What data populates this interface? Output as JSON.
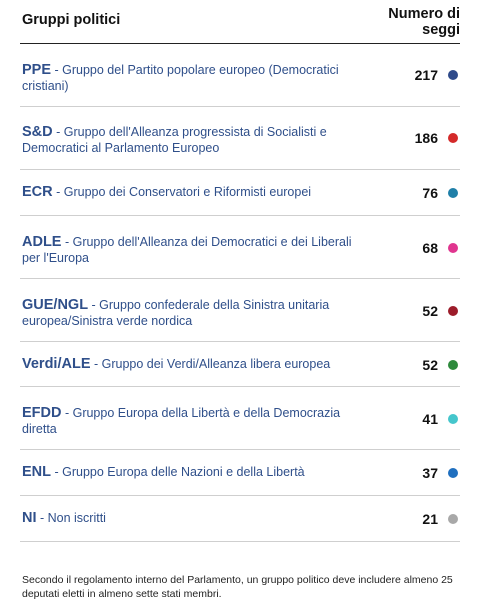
{
  "header": {
    "col_groups": "Gruppi politici",
    "col_seats": "Numero di seggi"
  },
  "groups": [
    {
      "abbr": "PPE",
      "name": "Gruppo del Partito popolare europeo (Democratici cristiani)",
      "seats": "217",
      "color": "#2e4a8a"
    },
    {
      "abbr": "S&D",
      "name": "Gruppo dell'Alleanza progressista di Socialisti e Democratici al Parlamento Europeo",
      "seats": "186",
      "color": "#d42a2a"
    },
    {
      "abbr": "ECR",
      "name": "Gruppo dei Conservatori e Riformisti europei",
      "seats": "76",
      "color": "#1f7fa8"
    },
    {
      "abbr": "ADLE",
      "name": "Gruppo dell'Alleanza dei Democratici e dei Liberali per l'Europa",
      "seats": "68",
      "color": "#e0358f"
    },
    {
      "abbr": "GUE/NGL",
      "name": "Gruppo confederale della Sinistra unitaria europea/Sinistra verde nordica",
      "seats": "52",
      "color": "#9c1c2a"
    },
    {
      "abbr": "Verdi/ALE",
      "name": "Gruppo dei Verdi/Alleanza libera europea",
      "seats": "52",
      "color": "#2e8a3c"
    },
    {
      "abbr": "EFDD",
      "name": "Gruppo Europa della Libertà e della Democrazia diretta",
      "seats": "41",
      "color": "#45c6cc"
    },
    {
      "abbr": "ENL",
      "name": "Gruppo Europa delle Nazioni e della Libertà",
      "seats": "37",
      "color": "#1f6fbf"
    },
    {
      "abbr": "NI",
      "name": "Non iscritti",
      "seats": "21",
      "color": "#a8a8a8"
    }
  ],
  "note": "Secondo il regolamento interno del Parlamento, un gruppo politico deve includere almeno 25 deputati eletti in almeno sette stati membri."
}
